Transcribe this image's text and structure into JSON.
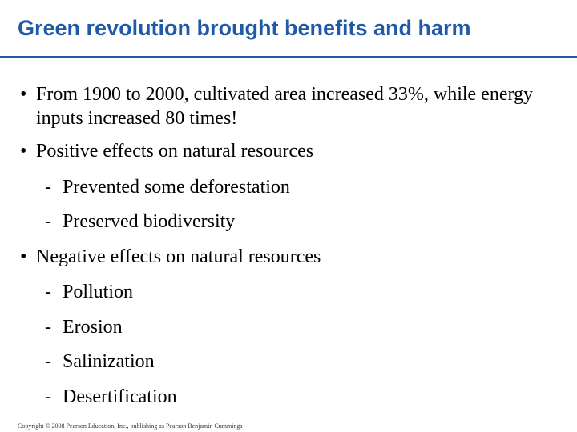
{
  "slide": {
    "title": "Green revolution brought benefits and harm",
    "bullet_symbol": "•",
    "dash_symbol": "-",
    "bullets": [
      {
        "text": "From 1900 to 2000, cultivated area increased 33%, while energy inputs increased  80 times!"
      },
      {
        "text": "Positive effects on natural resources",
        "subitems": [
          "Prevented some deforestation",
          "Preserved biodiversity"
        ]
      },
      {
        "text": "Negative effects on natural resources",
        "subitems": [
          "Pollution",
          "Erosion",
          "Salinization",
          "Desertification"
        ]
      }
    ],
    "copyright": "Copyright © 2008 Pearson Education, Inc., publishing as Pearson Benjamin Cummings"
  },
  "colors": {
    "title": "#1f5aa6",
    "text": "#000000",
    "background": "#ffffff"
  }
}
